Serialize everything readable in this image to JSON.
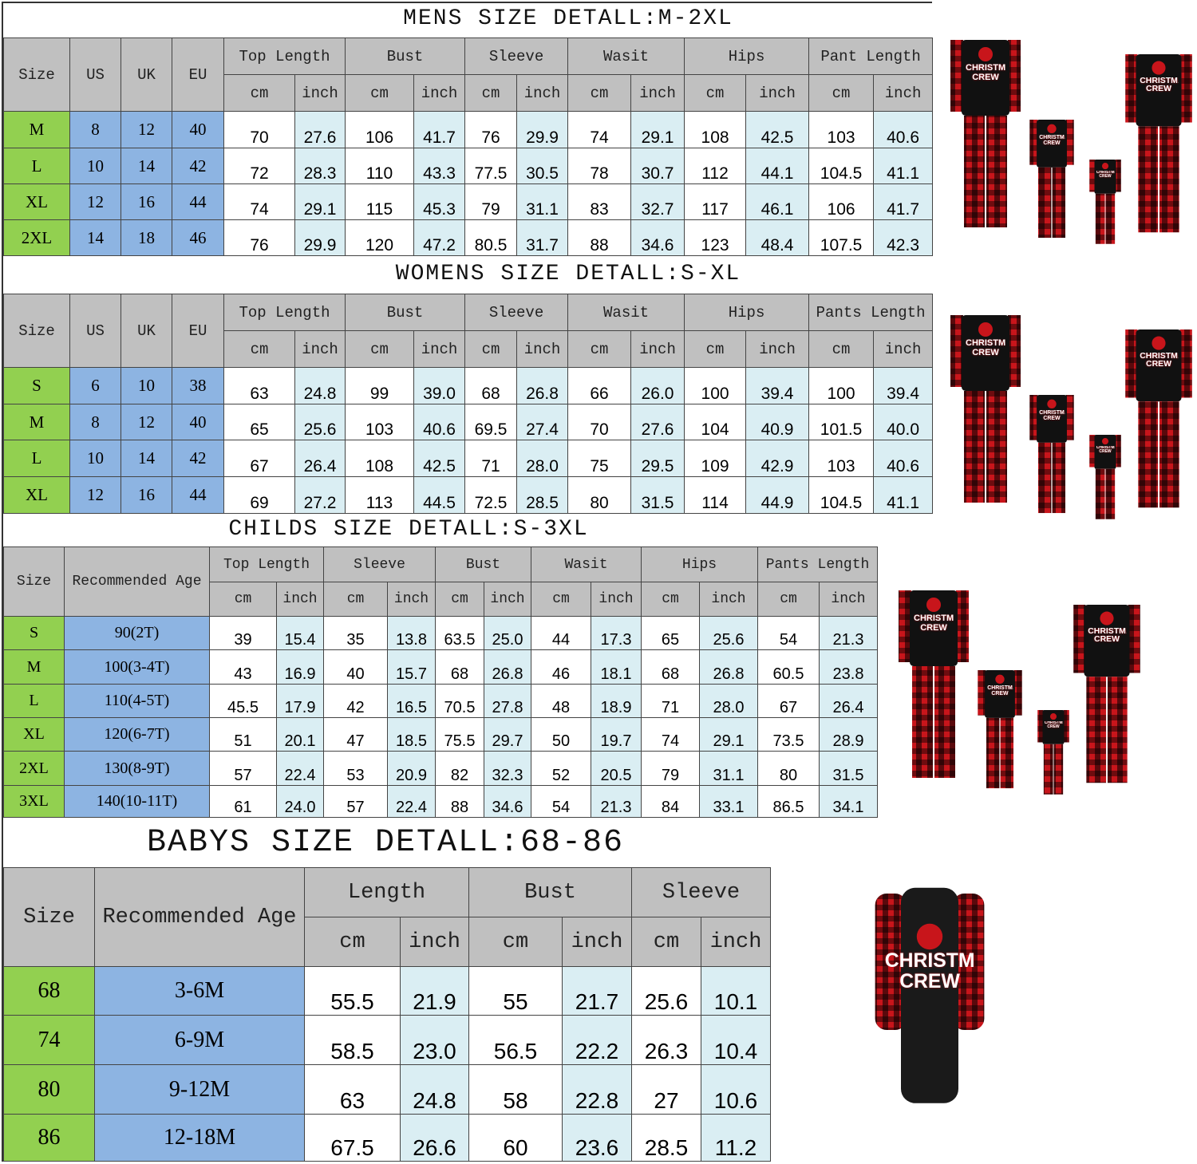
{
  "colors": {
    "header": "#c0c0c0",
    "size_col": "#92d050",
    "label_col": "#8db4e2",
    "inch_col": "#daeef3",
    "value_col": "#ffffff"
  },
  "product_print": "CHRISTMAS CREW",
  "tables": [
    {
      "title": "MENS SIZE DETALL:M-2XL",
      "fixed_headers": [
        "Size",
        "US",
        "UK",
        "EU"
      ],
      "groups": [
        "Top Length",
        "Bust",
        "Sleeve",
        "Wasit",
        "Hips",
        "Pant Length"
      ],
      "units": [
        "cm",
        "inch"
      ],
      "rows": [
        {
          "size": "M",
          "labels": [
            "8",
            "12",
            "40"
          ],
          "values": [
            "70",
            "27.6",
            "106",
            "41.7",
            "76",
            "29.9",
            "74",
            "29.1",
            "108",
            "42.5",
            "103",
            "40.6"
          ]
        },
        {
          "size": "L",
          "labels": [
            "10",
            "14",
            "42"
          ],
          "values": [
            "72",
            "28.3",
            "110",
            "43.3",
            "77.5",
            "30.5",
            "78",
            "30.7",
            "112",
            "44.1",
            "104.5",
            "41.1"
          ]
        },
        {
          "size": "XL",
          "labels": [
            "12",
            "16",
            "44"
          ],
          "values": [
            "74",
            "29.1",
            "115",
            "45.3",
            "79",
            "31.1",
            "83",
            "32.7",
            "117",
            "46.1",
            "106",
            "41.7"
          ]
        },
        {
          "size": "2XL",
          "labels": [
            "14",
            "18",
            "46"
          ],
          "values": [
            "76",
            "29.9",
            "120",
            "47.2",
            "80.5",
            "31.7",
            "88",
            "34.6",
            "123",
            "48.4",
            "107.5",
            "42.3"
          ]
        }
      ]
    },
    {
      "title": "WOMENS SIZE DETALL:S-XL",
      "fixed_headers": [
        "Size",
        "US",
        "UK",
        "EU"
      ],
      "groups": [
        "Top Length",
        "Bust",
        "Sleeve",
        "Wasit",
        "Hips",
        "Pants Length"
      ],
      "units": [
        "cm",
        "inch"
      ],
      "rows": [
        {
          "size": "S",
          "labels": [
            "6",
            "10",
            "38"
          ],
          "values": [
            "63",
            "24.8",
            "99",
            "39.0",
            "68",
            "26.8",
            "66",
            "26.0",
            "100",
            "39.4",
            "100",
            "39.4"
          ]
        },
        {
          "size": "M",
          "labels": [
            "8",
            "12",
            "40"
          ],
          "values": [
            "65",
            "25.6",
            "103",
            "40.6",
            "69.5",
            "27.4",
            "70",
            "27.6",
            "104",
            "40.9",
            "101.5",
            "40.0"
          ]
        },
        {
          "size": "L",
          "labels": [
            "10",
            "14",
            "42"
          ],
          "values": [
            "67",
            "26.4",
            "108",
            "42.5",
            "71",
            "28.0",
            "75",
            "29.5",
            "109",
            "42.9",
            "103",
            "40.6"
          ]
        },
        {
          "size": "XL",
          "labels": [
            "12",
            "16",
            "44"
          ],
          "values": [
            "69",
            "27.2",
            "113",
            "44.5",
            "72.5",
            "28.5",
            "80",
            "31.5",
            "114",
            "44.9",
            "104.5",
            "41.1"
          ]
        }
      ]
    },
    {
      "title": "CHILDS SIZE DETALL:S-3XL",
      "fixed_headers": [
        "Size",
        "Recommended Age"
      ],
      "groups": [
        "Top Length",
        "Sleeve",
        "Bust",
        "Wasit",
        "Hips",
        "Pants Length"
      ],
      "units": [
        "cm",
        "inch"
      ],
      "rows": [
        {
          "size": "S",
          "labels": [
            "90(2T)"
          ],
          "values": [
            "39",
            "15.4",
            "35",
            "13.8",
            "63.5",
            "25.0",
            "44",
            "17.3",
            "65",
            "25.6",
            "54",
            "21.3"
          ]
        },
        {
          "size": "M",
          "labels": [
            "100(3-4T)"
          ],
          "values": [
            "43",
            "16.9",
            "40",
            "15.7",
            "68",
            "26.8",
            "46",
            "18.1",
            "68",
            "26.8",
            "60.5",
            "23.8"
          ]
        },
        {
          "size": "L",
          "labels": [
            "110(4-5T)"
          ],
          "values": [
            "45.5",
            "17.9",
            "42",
            "16.5",
            "70.5",
            "27.8",
            "48",
            "18.9",
            "71",
            "28.0",
            "67",
            "26.4"
          ]
        },
        {
          "size": "XL",
          "labels": [
            "120(6-7T)"
          ],
          "values": [
            "51",
            "20.1",
            "47",
            "18.5",
            "75.5",
            "29.7",
            "50",
            "19.7",
            "74",
            "29.1",
            "73.5",
            "28.9"
          ]
        },
        {
          "size": "2XL",
          "labels": [
            "130(8-9T)"
          ],
          "values": [
            "57",
            "22.4",
            "53",
            "20.9",
            "82",
            "32.3",
            "52",
            "20.5",
            "79",
            "31.1",
            "80",
            "31.5"
          ]
        },
        {
          "size": "3XL",
          "labels": [
            "140(10-11T)"
          ],
          "values": [
            "61",
            "24.0",
            "57",
            "22.4",
            "88",
            "34.6",
            "54",
            "21.3",
            "84",
            "33.1",
            "86.5",
            "34.1"
          ]
        }
      ]
    },
    {
      "title": "BABYS SIZE DETALL:68-86",
      "fixed_headers": [
        "Size",
        "Recommended Age"
      ],
      "groups": [
        "Length",
        "Bust",
        "Sleeve"
      ],
      "units": [
        "cm",
        "inch"
      ],
      "rows": [
        {
          "size": "68",
          "labels": [
            "3-6M"
          ],
          "values": [
            "55.5",
            "21.9",
            "55",
            "21.7",
            "25.6",
            "10.1"
          ]
        },
        {
          "size": "74",
          "labels": [
            "6-9M"
          ],
          "values": [
            "58.5",
            "23.0",
            "56.5",
            "22.2",
            "26.3",
            "10.4"
          ]
        },
        {
          "size": "80",
          "labels": [
            "9-12M"
          ],
          "values": [
            "63",
            "24.8",
            "58",
            "22.8",
            "27",
            "10.6"
          ]
        },
        {
          "size": "86",
          "labels": [
            "12-18M"
          ],
          "values": [
            "67.5",
            "26.6",
            "60",
            "23.6",
            "28.5",
            "11.2"
          ]
        }
      ]
    }
  ]
}
